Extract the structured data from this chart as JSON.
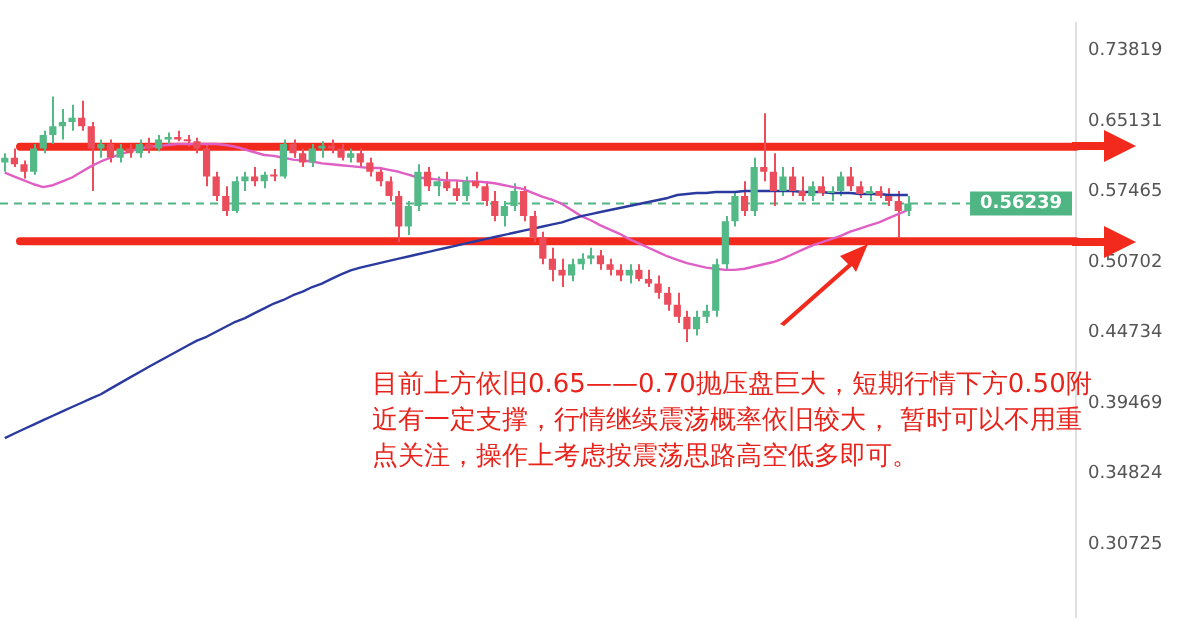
{
  "chart_data": {
    "type": "candlestick",
    "log": true,
    "tick_labels": "y",
    "categories": [
      null,
      null,
      null,
      null,
      null,
      null,
      null,
      null,
      null,
      null,
      null,
      null,
      null,
      null,
      null,
      null,
      null,
      null,
      null,
      null,
      null,
      null,
      null,
      null,
      null,
      null,
      null,
      null,
      null,
      null,
      null,
      null,
      null,
      null,
      null,
      null,
      null,
      null,
      null,
      null,
      null,
      null,
      null,
      null,
      null,
      null,
      null,
      null,
      null,
      null,
      null,
      null,
      null,
      null,
      null,
      null,
      null,
      null,
      null,
      null,
      null,
      null,
      null,
      null,
      null,
      null,
      null,
      null,
      null,
      null,
      null,
      null,
      null,
      null,
      null,
      null,
      null,
      null,
      null,
      null,
      null,
      null,
      null,
      null,
      null,
      null,
      null,
      null,
      null,
      null,
      null,
      null,
      null,
      null,
      null,
      null,
      null,
      null,
      null,
      null,
      null,
      null,
      null,
      null,
      null,
      null,
      null,
      null,
      null,
      null,
      null,
      null
    ],
    "ohlc": [
      [
        0.605,
        0.615,
        0.595,
        0.61
      ],
      [
        0.61,
        0.62,
        0.6,
        0.603
      ],
      [
        0.603,
        0.607,
        0.588,
        0.595
      ],
      [
        0.595,
        0.625,
        0.592,
        0.62
      ],
      [
        0.62,
        0.64,
        0.615,
        0.635
      ],
      [
        0.635,
        0.68,
        0.625,
        0.645
      ],
      [
        0.645,
        0.665,
        0.63,
        0.65
      ],
      [
        0.65,
        0.67,
        0.64,
        0.655
      ],
      [
        0.655,
        0.675,
        0.64,
        0.645
      ],
      [
        0.645,
        0.65,
        0.575,
        0.62
      ],
      [
        0.62,
        0.63,
        0.61,
        0.625
      ],
      [
        0.625,
        0.63,
        0.605,
        0.61
      ],
      [
        0.61,
        0.625,
        0.605,
        0.62
      ],
      [
        0.62,
        0.625,
        0.61,
        0.615
      ],
      [
        0.615,
        0.63,
        0.61,
        0.625
      ],
      [
        0.625,
        0.632,
        0.615,
        0.62
      ],
      [
        0.62,
        0.635,
        0.617,
        0.63
      ],
      [
        0.63,
        0.638,
        0.625,
        0.633
      ],
      [
        0.633,
        0.64,
        0.628,
        0.63
      ],
      [
        0.63,
        0.635,
        0.622,
        0.628
      ],
      [
        0.628,
        0.632,
        0.615,
        0.62
      ],
      [
        0.62,
        0.625,
        0.58,
        0.59
      ],
      [
        0.59,
        0.595,
        0.565,
        0.57
      ],
      [
        0.57,
        0.58,
        0.55,
        0.555
      ],
      [
        0.555,
        0.59,
        0.553,
        0.585
      ],
      [
        0.585,
        0.595,
        0.575,
        0.59
      ],
      [
        0.59,
        0.6,
        0.58,
        0.585
      ],
      [
        0.585,
        0.595,
        0.578,
        0.592
      ],
      [
        0.592,
        0.598,
        0.585,
        0.59
      ],
      [
        0.59,
        0.63,
        0.588,
        0.625
      ],
      [
        0.625,
        0.63,
        0.61,
        0.615
      ],
      [
        0.615,
        0.62,
        0.6,
        0.605
      ],
      [
        0.605,
        0.625,
        0.6,
        0.62
      ],
      [
        0.62,
        0.628,
        0.61,
        0.623
      ],
      [
        0.623,
        0.63,
        0.615,
        0.62
      ],
      [
        0.62,
        0.625,
        0.607,
        0.61
      ],
      [
        0.61,
        0.62,
        0.605,
        0.615
      ],
      [
        0.615,
        0.62,
        0.6,
        0.605
      ],
      [
        0.605,
        0.61,
        0.59,
        0.595
      ],
      [
        0.595,
        0.6,
        0.58,
        0.585
      ],
      [
        0.585,
        0.59,
        0.565,
        0.57
      ],
      [
        0.57,
        0.575,
        0.525,
        0.54
      ],
      [
        0.54,
        0.565,
        0.532,
        0.56
      ],
      [
        0.56,
        0.603,
        0.555,
        0.595
      ],
      [
        0.595,
        0.6,
        0.575,
        0.58
      ],
      [
        0.58,
        0.59,
        0.57,
        0.585
      ],
      [
        0.585,
        0.595,
        0.575,
        0.578
      ],
      [
        0.578,
        0.585,
        0.565,
        0.57
      ],
      [
        0.57,
        0.59,
        0.565,
        0.585
      ],
      [
        0.585,
        0.595,
        0.578,
        0.58
      ],
      [
        0.58,
        0.585,
        0.56,
        0.565
      ],
      [
        0.565,
        0.575,
        0.545,
        0.55
      ],
      [
        0.55,
        0.565,
        0.54,
        0.56
      ],
      [
        0.56,
        0.583,
        0.555,
        0.575
      ],
      [
        0.575,
        0.58,
        0.545,
        0.55
      ],
      [
        0.55,
        0.555,
        0.525,
        0.53
      ],
      [
        0.53,
        0.535,
        0.505,
        0.51
      ],
      [
        0.51,
        0.52,
        0.49,
        0.5
      ],
      [
        0.5,
        0.51,
        0.485,
        0.495
      ],
      [
        0.495,
        0.51,
        0.49,
        0.505
      ],
      [
        0.505,
        0.515,
        0.5,
        0.51
      ],
      [
        0.51,
        0.52,
        0.505,
        0.513
      ],
      [
        0.513,
        0.518,
        0.5,
        0.505
      ],
      [
        0.505,
        0.51,
        0.495,
        0.5
      ],
      [
        0.5,
        0.505,
        0.49,
        0.495
      ],
      [
        0.495,
        0.505,
        0.488,
        0.5
      ],
      [
        0.5,
        0.505,
        0.49,
        0.492
      ],
      [
        0.492,
        0.5,
        0.485,
        0.488
      ],
      [
        0.488,
        0.495,
        0.475,
        0.48
      ],
      [
        0.48,
        0.485,
        0.465,
        0.47
      ],
      [
        0.47,
        0.48,
        0.455,
        0.46
      ],
      [
        0.46,
        0.465,
        0.44,
        0.45
      ],
      [
        0.45,
        0.465,
        0.445,
        0.46
      ],
      [
        0.46,
        0.47,
        0.455,
        0.465
      ],
      [
        0.465,
        0.51,
        0.46,
        0.505
      ],
      [
        0.505,
        0.55,
        0.5,
        0.545
      ],
      [
        0.545,
        0.575,
        0.54,
        0.57
      ],
      [
        0.57,
        0.585,
        0.55,
        0.555
      ],
      [
        0.555,
        0.61,
        0.55,
        0.6
      ],
      [
        0.6,
        0.66,
        0.585,
        0.595
      ],
      [
        0.595,
        0.615,
        0.56,
        0.575
      ],
      [
        0.575,
        0.6,
        0.57,
        0.59
      ],
      [
        0.59,
        0.6,
        0.57,
        0.575
      ],
      [
        0.575,
        0.59,
        0.565,
        0.57
      ],
      [
        0.57,
        0.585,
        0.565,
        0.58
      ],
      [
        0.58,
        0.59,
        0.57,
        0.573
      ],
      [
        0.573,
        0.58,
        0.565,
        0.575
      ],
      [
        0.575,
        0.595,
        0.57,
        0.59
      ],
      [
        0.59,
        0.6,
        0.575,
        0.58
      ],
      [
        0.58,
        0.585,
        0.568,
        0.572
      ],
      [
        0.572,
        0.58,
        0.565,
        0.575
      ],
      [
        0.575,
        0.58,
        0.568,
        0.57
      ],
      [
        0.57,
        0.578,
        0.56,
        0.565
      ],
      [
        0.565,
        0.575,
        0.53,
        0.555
      ],
      [
        0.555,
        0.57,
        0.55,
        0.56239
      ],
      null,
      null,
      null,
      null,
      null,
      null,
      null,
      null,
      null,
      null,
      null,
      null,
      null,
      null,
      null,
      null,
      null
    ],
    "series": [
      {
        "type": "line",
        "color": "#2b3a9e",
        "values": [
          0.371,
          0.374,
          0.377,
          0.38,
          0.383,
          0.386,
          0.389,
          0.392,
          0.395,
          0.398,
          0.401,
          0.405,
          0.409,
          0.413,
          0.417,
          0.421,
          0.425,
          0.429,
          0.433,
          0.437,
          0.441,
          0.444,
          0.448,
          0.452,
          0.456,
          0.459,
          0.463,
          0.467,
          0.471,
          0.474,
          0.478,
          0.481,
          0.485,
          0.488,
          0.492,
          0.496,
          0.4995,
          0.502,
          0.504,
          0.506,
          0.508,
          0.51,
          0.512,
          0.514,
          0.516,
          0.518,
          0.52,
          0.522,
          0.524,
          0.526,
          0.528,
          0.53,
          0.532,
          0.534,
          0.536,
          0.538,
          0.54,
          0.542,
          0.544,
          0.547,
          0.55,
          0.552,
          0.554,
          0.556,
          0.558,
          0.56,
          0.562,
          0.564,
          0.566,
          0.568,
          0.571,
          0.572,
          0.573,
          0.573,
          0.574,
          0.574,
          0.574,
          0.575,
          0.575,
          0.575,
          0.575,
          0.575,
          0.575,
          0.574,
          0.574,
          0.574,
          0.573,
          0.573,
          0.573,
          0.572,
          0.572,
          0.572,
          0.571,
          0.571,
          0.571,
          null,
          null,
          null,
          null,
          null,
          null,
          null,
          null,
          null,
          null,
          null,
          null,
          null,
          null,
          null,
          null,
          null
        ]
      },
      {
        "type": "line",
        "color": "#e05fc4",
        "values": [
          0.594,
          0.59,
          0.586,
          0.582,
          0.579,
          0.581,
          0.585,
          0.589,
          0.595,
          0.601,
          0.606,
          0.61,
          0.614,
          0.617,
          0.62,
          0.622,
          0.623,
          0.624,
          0.625,
          0.625,
          0.625,
          0.625,
          0.625,
          0.624,
          0.622,
          0.619,
          0.616,
          0.613,
          0.612,
          0.61,
          0.608,
          0.607,
          0.606,
          0.604,
          0.603,
          0.602,
          0.601,
          0.6,
          0.599,
          0.599,
          0.597,
          0.595,
          0.592,
          0.589,
          0.588,
          0.587,
          0.586,
          0.586,
          0.585,
          0.585,
          0.584,
          0.583,
          0.581,
          0.579,
          0.577,
          0.573,
          0.569,
          0.566,
          0.562,
          0.556,
          0.55,
          0.546,
          0.541,
          0.537,
          0.533,
          0.528,
          0.524,
          0.52,
          0.516,
          0.512,
          0.509,
          0.506,
          0.504,
          0.502,
          0.501,
          0.5,
          0.5,
          0.501,
          0.503,
          0.505,
          0.507,
          0.51,
          0.514,
          0.518,
          0.522,
          0.525,
          0.528,
          0.531,
          0.535,
          0.538,
          0.541,
          0.544,
          0.548,
          0.552,
          0.556,
          null,
          null,
          null,
          null,
          null,
          null,
          null,
          null,
          null,
          null,
          null,
          null,
          null,
          null,
          null,
          null,
          null
        ]
      }
    ],
    "ylim": [
      0.27,
      0.775
    ],
    "yticks": [
      0.30725,
      0.34824,
      0.39469,
      0.44734,
      0.50702,
      0.57465,
      0.65131,
      0.73819
    ],
    "ref_lines": [
      {
        "axis": "y",
        "value": 0.622,
        "color": "#f22a1e",
        "line_style": "solid"
      },
      {
        "axis": "y",
        "value": 0.526,
        "color": "#f22a1e",
        "line_style": "solid"
      },
      {
        "axis": "y",
        "value": 0.56239,
        "label": "0.56239",
        "color": "#4fb683",
        "line_style": "dashed"
      }
    ],
    "annotations": [
      "目前上方依旧0.65——0.70抛压盘巨大，短期行情下方0.50附近有一定支撑，行情继续震荡概率依旧较大， 暂时可以不用重点关注，操作上考虑按震荡思路高空低多即可。"
    ]
  }
}
